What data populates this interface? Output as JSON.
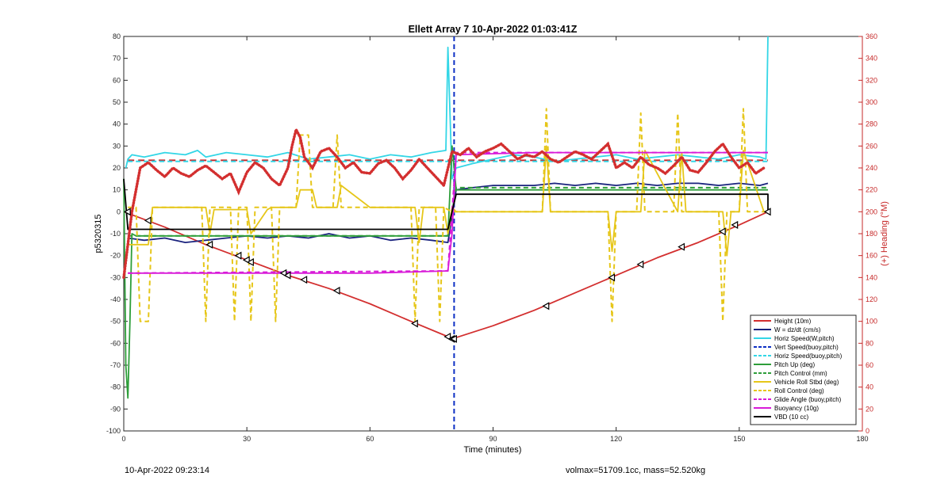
{
  "chart_data": {
    "type": "line",
    "title": "Ellett Array 7 10-Apr-2022 01:03:41Z",
    "xlabel": "Time (minutes)",
    "ylabel": "p5320315",
    "y2label": "(+) Heading (°M)",
    "xlim": [
      0,
      180
    ],
    "ylim": [
      -100,
      80
    ],
    "y2lim": [
      0,
      360
    ],
    "xticks": [
      "0",
      "30",
      "60",
      "90",
      "120",
      "150",
      "180"
    ],
    "yticks": [
      "80",
      "70",
      "60",
      "50",
      "40",
      "30",
      "20",
      "10",
      "0",
      "-10",
      "-20",
      "-30",
      "-40",
      "-50",
      "-60",
      "-70",
      "-80",
      "-90",
      "-100"
    ],
    "y2ticks": [
      "360",
      "340",
      "320",
      "300",
      "280",
      "260",
      "240",
      "220",
      "200",
      "180",
      "160",
      "140",
      "120",
      "100",
      "80",
      "60",
      "40",
      "20",
      "0"
    ],
    "grid": false,
    "legend_position": "bottom-right",
    "colors": {
      "heading_axis": "#c62828"
    },
    "series": [
      {
        "name": "Height (10m)",
        "color": "#d32f2f",
        "style": "solid",
        "x": [
          0,
          10,
          20,
          30,
          40,
          50,
          60,
          70,
          79,
          80,
          90,
          100,
          110,
          120,
          130,
          140,
          150,
          157
        ],
        "y": [
          0,
          -7,
          -15,
          -22,
          -29,
          -35,
          -42,
          -50,
          -57,
          -58,
          -52,
          -45,
          -37,
          -29,
          -21,
          -14,
          -6,
          0
        ]
      },
      {
        "name": "W = dz/dt (cm/s)",
        "color": "#1a237e",
        "style": "solid",
        "x": [
          1,
          5,
          10,
          15,
          20,
          25,
          30,
          35,
          40,
          45,
          50,
          55,
          60,
          65,
          70,
          75,
          79,
          81,
          85,
          90,
          95,
          100,
          105,
          110,
          115,
          120,
          125,
          130,
          135,
          140,
          145,
          150,
          155,
          157
        ],
        "y": [
          -12,
          -13,
          -12,
          -14,
          -13,
          -12,
          -11,
          -12,
          -11,
          -12,
          -10,
          -12,
          -11,
          -13,
          -12,
          -13,
          -14,
          10,
          11,
          12,
          12,
          12,
          13,
          12,
          13,
          12,
          13,
          12,
          13,
          13,
          12,
          13,
          12,
          13
        ]
      },
      {
        "name": "Horiz Speed(W,pitch)",
        "color": "#33d6e6",
        "style": "solid",
        "x": [
          0.5,
          1,
          2,
          5,
          10,
          15,
          18,
          20,
          25,
          30,
          35,
          40,
          45,
          50,
          55,
          60,
          65,
          70,
          75,
          78.5,
          79,
          80,
          81,
          85,
          90,
          95,
          100,
          105,
          110,
          115,
          120,
          125,
          130,
          135,
          140,
          145,
          150,
          155,
          156.5,
          157
        ],
        "y": [
          20,
          24,
          26,
          25,
          27,
          26,
          28,
          25,
          27,
          26,
          25,
          27,
          24,
          25,
          26,
          24,
          26,
          25,
          27,
          28,
          75,
          15,
          20,
          22,
          24,
          26,
          25,
          23,
          24,
          25,
          26,
          24,
          25,
          26,
          25,
          24,
          26,
          25,
          24,
          80
        ]
      },
      {
        "name": "Vert Speed(buoy,pitch)",
        "color": "#0d2fc4",
        "style": "dashed",
        "x": [
          80.5,
          80.5
        ],
        "y": [
          80,
          -100
        ]
      },
      {
        "name": "Horiz Speed(buoy,pitch)",
        "color": "#33d6e6",
        "style": "dashed",
        "x": [
          1,
          79,
          81,
          157
        ],
        "y": [
          23,
          23,
          23,
          23
        ]
      },
      {
        "name": "Pitch Up (deg)",
        "color": "#2e9e3a",
        "style": "solid",
        "x": [
          0,
          0.5,
          1,
          1.5,
          2,
          3,
          5,
          10,
          20,
          30,
          40,
          50,
          60,
          70,
          79,
          80,
          81,
          90,
          100,
          110,
          120,
          130,
          140,
          150,
          157
        ],
        "y": [
          15,
          -70,
          -85,
          -50,
          -10,
          -11,
          -11,
          -11,
          -11,
          -11,
          -11,
          -11,
          -11,
          -11,
          -11,
          30,
          10,
          10,
          10,
          10,
          10,
          10,
          10,
          10,
          10
        ]
      },
      {
        "name": "Pitch Control (mm)",
        "color": "#2e9e3a",
        "style": "dashed",
        "x": [
          1,
          79,
          81,
          157
        ],
        "y": [
          -11,
          -11,
          11,
          11
        ]
      },
      {
        "name": "Vehicle Roll Stbd (deg)",
        "color": "#e6c619",
        "style": "solid",
        "x": [
          1,
          6,
          7,
          20,
          21,
          22,
          23,
          30,
          31,
          35,
          36,
          42,
          43,
          46,
          47,
          52,
          53,
          60,
          71,
          72,
          73,
          78,
          79,
          80,
          81,
          90,
          102,
          103,
          104,
          118,
          119,
          120,
          126,
          127,
          135,
          136,
          137,
          146,
          147,
          148,
          150,
          151,
          156
        ],
        "y": [
          -15,
          -15,
          2,
          2,
          -10,
          1,
          1,
          1,
          -10,
          1,
          2,
          2,
          10,
          10,
          2,
          2,
          12,
          2,
          2,
          -14,
          2,
          2,
          -10,
          2,
          0,
          0,
          0,
          30,
          0,
          0,
          -18,
          0,
          0,
          28,
          0,
          27,
          0,
          0,
          -20,
          0,
          0,
          28,
          0
        ]
      },
      {
        "name": "Roll Control (deg)",
        "color": "#e6c619",
        "style": "dashed",
        "x": [
          1,
          3,
          4,
          6,
          7,
          10,
          15,
          19,
          20,
          21,
          22,
          26,
          27,
          28,
          30,
          31,
          32,
          36,
          37,
          38,
          40,
          42,
          43,
          45,
          46,
          51,
          52,
          53,
          60,
          70,
          71,
          72,
          73,
          76,
          77,
          78,
          80,
          90,
          100,
          102,
          103,
          104,
          110,
          117,
          118,
          119,
          120,
          125,
          126,
          127,
          130,
          134,
          135,
          136,
          137,
          144,
          145,
          146,
          147,
          148,
          150,
          151,
          152,
          157
        ],
        "y": [
          2,
          2,
          -50,
          -50,
          2,
          2,
          2,
          2,
          -50,
          2,
          2,
          2,
          -50,
          2,
          2,
          -50,
          2,
          2,
          -50,
          2,
          2,
          2,
          35,
          35,
          2,
          2,
          35,
          2,
          2,
          2,
          -50,
          2,
          2,
          2,
          -50,
          2,
          0,
          0,
          0,
          0,
          47,
          0,
          0,
          0,
          0,
          -50,
          0,
          0,
          45,
          0,
          0,
          0,
          45,
          0,
          0,
          0,
          0,
          -50,
          0,
          0,
          0,
          47,
          0,
          0
        ]
      },
      {
        "name": "Glide Angle (buoy,pitch)",
        "color": "#d81bd8",
        "style": "dashed",
        "x": [
          1,
          79,
          81,
          157
        ],
        "y": [
          -28,
          -27,
          27,
          27
        ]
      },
      {
        "name": "Buoyancy (10g)",
        "color": "#d81bd8",
        "style": "solid",
        "x": [
          1,
          20,
          40,
          60,
          79,
          80,
          81,
          100,
          120,
          140,
          157
        ],
        "y": [
          -28,
          -28,
          -28,
          -28,
          -27,
          -10,
          26,
          27,
          27,
          27,
          27
        ]
      },
      {
        "name": "VBD (10 cc)",
        "color": "#000000",
        "style": "solid",
        "x": [
          0,
          1,
          20,
          40,
          60,
          79,
          81,
          100,
          120,
          140,
          157,
          157
        ],
        "y": [
          15,
          -8,
          -8,
          -8,
          -8,
          -8,
          8,
          8,
          8,
          8,
          8,
          0
        ]
      }
    ],
    "heading_series": {
      "name": "Heading",
      "color": "#d32f2f",
      "style": "dotted",
      "axis": "right",
      "x": [
        0,
        2,
        4,
        6,
        8,
        10,
        12,
        14,
        16,
        18,
        20,
        22,
        24,
        26,
        28,
        30,
        32,
        34,
        36,
        38,
        40,
        41,
        42,
        43,
        44,
        46,
        48,
        50,
        52,
        54,
        56,
        58,
        60,
        62,
        64,
        66,
        68,
        70,
        72,
        74,
        76,
        78,
        80,
        82,
        84,
        86,
        88,
        90,
        92,
        94,
        96,
        98,
        100,
        102,
        104,
        106,
        108,
        110,
        112,
        114,
        116,
        118,
        120,
        122,
        124,
        126,
        128,
        130,
        132,
        134,
        136,
        138,
        140,
        142,
        144,
        146,
        148,
        150,
        152,
        154,
        156
      ],
      "y": [
        140,
        200,
        240,
        245,
        238,
        232,
        240,
        235,
        232,
        238,
        242,
        236,
        230,
        235,
        218,
        236,
        245,
        240,
        230,
        224,
        240,
        260,
        275,
        268,
        250,
        240,
        255,
        258,
        250,
        240,
        245,
        236,
        235,
        244,
        247,
        240,
        230,
        238,
        248,
        240,
        232,
        224,
        255,
        252,
        258,
        250,
        255,
        258,
        262,
        255,
        248,
        252,
        250,
        255,
        248,
        245,
        250,
        255,
        252,
        248,
        255,
        262,
        240,
        245,
        240,
        250,
        243,
        240,
        235,
        242,
        250,
        238,
        236,
        245,
        255,
        262,
        250,
        240,
        245,
        235,
        240
      ]
    },
    "heading_target": {
      "name": "Heading target",
      "color": "#c62828",
      "style": "dashed",
      "axis": "right",
      "y": 247
    },
    "markers": {
      "x": [
        1,
        6,
        21,
        28,
        30,
        31,
        39,
        40,
        44,
        52,
        71,
        79,
        80,
        80.5,
        103,
        119,
        126,
        136,
        146,
        149,
        157
      ],
      "y": [
        0,
        -4,
        -15,
        -20,
        -22,
        -23,
        -28,
        -29,
        -31,
        -36,
        -51,
        -57,
        -58,
        -58,
        -43,
        -30,
        -24,
        -16,
        -9,
        -6,
        0
      ]
    },
    "legend": [
      "Height (10m)",
      "W = dz/dt (cm/s)",
      "Horiz Speed(W,pitch)",
      "Vert Speed(buoy,pitch)",
      "Horiz Speed(buoy,pitch)",
      "Pitch Up (deg)",
      "Pitch Control (mm)",
      "Vehicle Roll Stbd (deg)",
      "Roll Control (deg)",
      "Glide Angle (buoy,pitch)",
      "Buoyancy (10g)",
      "VBD (10 cc)"
    ]
  },
  "footer": {
    "left": "10-Apr-2022 09:23:14",
    "right": "volmax=51709.1cc, mass=52.520kg"
  }
}
